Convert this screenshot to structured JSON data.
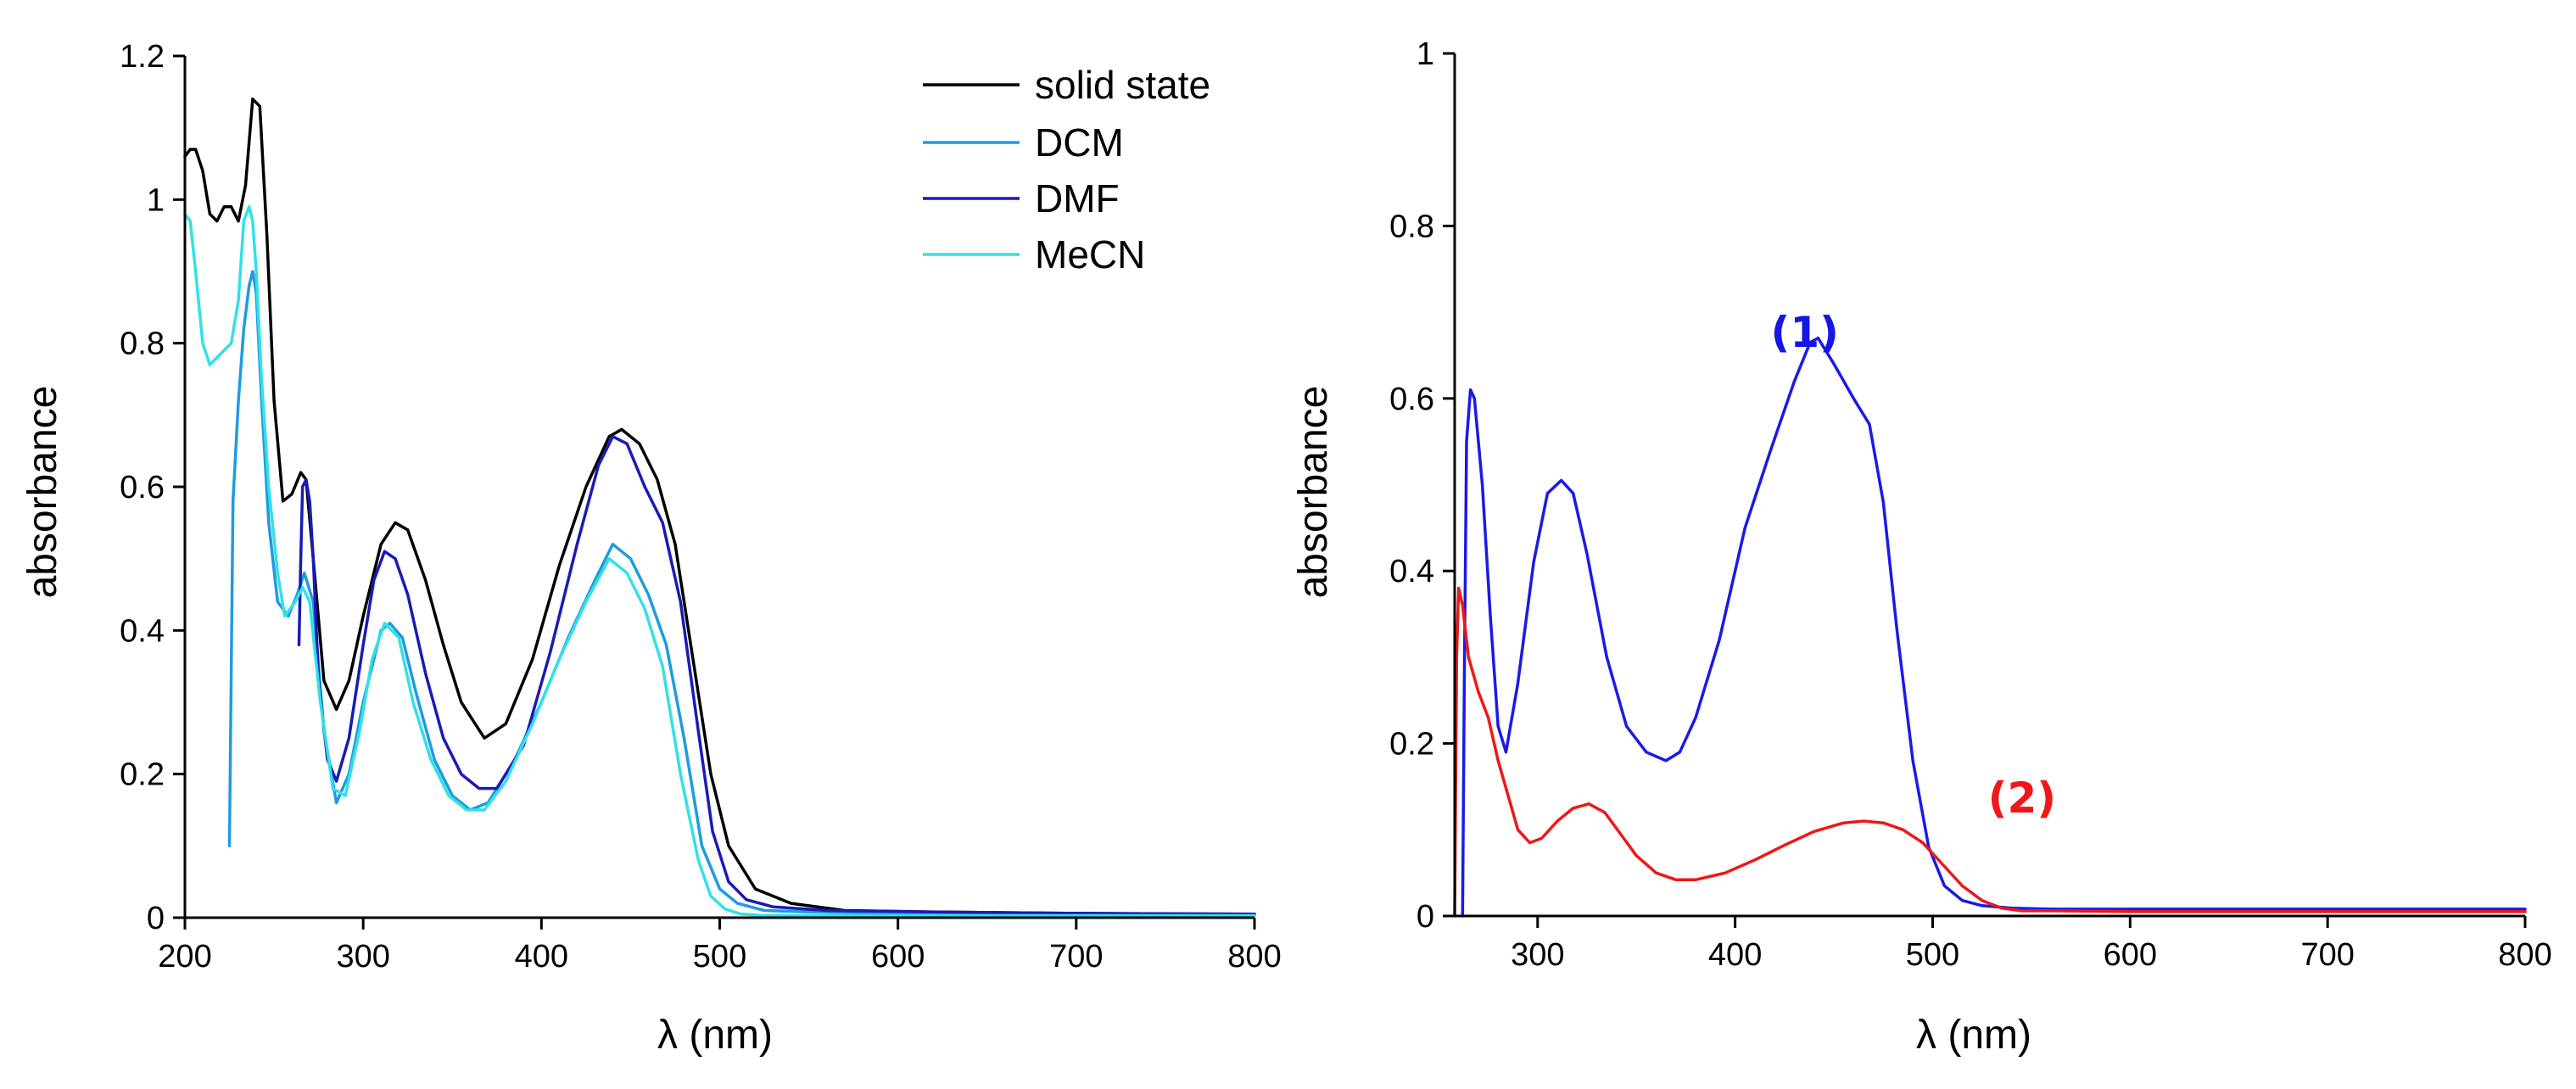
{
  "chart_data": [
    {
      "type": "line",
      "title": "",
      "xlabel": "λ (nm)",
      "ylabel": "absorbance",
      "xlim": [
        200,
        800
      ],
      "ylim": [
        0,
        1.2
      ],
      "xticks": [
        200,
        300,
        400,
        500,
        600,
        700,
        800
      ],
      "yticks": [
        0,
        0.2,
        0.4,
        0.6,
        0.8,
        1,
        1.2
      ],
      "ytick_labels": [
        "0",
        "0.2",
        "0.4",
        "0.6",
        "0.8",
        "1",
        "1.2"
      ],
      "legend": {
        "placement": "top-right",
        "entries": [
          {
            "name": "solid state",
            "color": "#000000"
          },
          {
            "name": "DCM",
            "color": "#1e9be0"
          },
          {
            "name": "DMF",
            "color": "#1a1ab8"
          },
          {
            "name": "MeCN",
            "color": "#33e0e6"
          }
        ]
      },
      "series": [
        {
          "name": "solid state",
          "color": "#000000",
          "x": [
            200,
            203,
            206,
            210,
            214,
            218,
            222,
            226,
            230,
            234,
            238,
            242,
            246,
            250,
            255,
            260,
            265,
            268,
            272,
            278,
            285,
            292,
            300,
            310,
            318,
            325,
            335,
            345,
            355,
            368,
            380,
            395,
            410,
            425,
            438,
            445,
            455,
            465,
            475,
            485,
            495,
            505,
            520,
            540,
            570,
            620,
            700,
            800
          ],
          "y": [
            1.06,
            1.07,
            1.07,
            1.04,
            0.98,
            0.97,
            0.99,
            0.99,
            0.97,
            1.02,
            1.14,
            1.13,
            0.95,
            0.72,
            0.58,
            0.59,
            0.62,
            0.61,
            0.5,
            0.33,
            0.29,
            0.33,
            0.42,
            0.52,
            0.55,
            0.54,
            0.47,
            0.38,
            0.3,
            0.25,
            0.27,
            0.36,
            0.49,
            0.6,
            0.67,
            0.68,
            0.66,
            0.61,
            0.52,
            0.36,
            0.2,
            0.1,
            0.04,
            0.02,
            0.01,
            0.008,
            0.006,
            0.005
          ]
        },
        {
          "name": "DCM",
          "color": "#1e9be0",
          "x": [
            225,
            227,
            230,
            233,
            236,
            238,
            240,
            243,
            247,
            252,
            258,
            263,
            267,
            272,
            278,
            285,
            292,
            300,
            310,
            315,
            322,
            330,
            340,
            350,
            360,
            370,
            385,
            400,
            415,
            430,
            440,
            450,
            460,
            470,
            480,
            490,
            500,
            510,
            525,
            550,
            600,
            700,
            800
          ],
          "y": [
            0.1,
            0.58,
            0.72,
            0.82,
            0.88,
            0.9,
            0.87,
            0.72,
            0.55,
            0.44,
            0.42,
            0.45,
            0.48,
            0.44,
            0.26,
            0.16,
            0.2,
            0.3,
            0.4,
            0.41,
            0.39,
            0.31,
            0.22,
            0.17,
            0.15,
            0.16,
            0.22,
            0.3,
            0.39,
            0.47,
            0.52,
            0.5,
            0.45,
            0.38,
            0.25,
            0.1,
            0.04,
            0.02,
            0.01,
            0.008,
            0.006,
            0.005,
            0.005
          ]
        },
        {
          "name": "DMF",
          "color": "#1a1ab8",
          "x": [
            264,
            265,
            266,
            268,
            270,
            272,
            275,
            280,
            285,
            292,
            300,
            306,
            312,
            318,
            325,
            335,
            345,
            355,
            365,
            375,
            390,
            405,
            420,
            432,
            440,
            448,
            458,
            468,
            478,
            488,
            496,
            505,
            515,
            530,
            560,
            620,
            700,
            800
          ],
          "y": [
            0.38,
            0.5,
            0.6,
            0.61,
            0.58,
            0.5,
            0.33,
            0.22,
            0.19,
            0.25,
            0.38,
            0.47,
            0.51,
            0.5,
            0.45,
            0.34,
            0.25,
            0.2,
            0.18,
            0.18,
            0.24,
            0.37,
            0.52,
            0.63,
            0.67,
            0.66,
            0.6,
            0.55,
            0.44,
            0.26,
            0.12,
            0.05,
            0.025,
            0.015,
            0.01,
            0.008,
            0.006,
            0.005
          ]
        },
        {
          "name": "MeCN",
          "color": "#33e0e6",
          "x": [
            200,
            203,
            206,
            210,
            214,
            218,
            222,
            226,
            230,
            233,
            236,
            238,
            240,
            243,
            247,
            252,
            256,
            262,
            266,
            270,
            276,
            283,
            290,
            298,
            305,
            312,
            320,
            328,
            338,
            348,
            358,
            368,
            380,
            395,
            410,
            425,
            438,
            448,
            458,
            468,
            478,
            488,
            495,
            503,
            512,
            525,
            550,
            600,
            700,
            800
          ],
          "y": [
            0.98,
            0.97,
            0.9,
            0.8,
            0.77,
            0.78,
            0.79,
            0.8,
            0.86,
            0.97,
            0.99,
            0.97,
            0.9,
            0.75,
            0.6,
            0.48,
            0.42,
            0.44,
            0.46,
            0.44,
            0.3,
            0.18,
            0.17,
            0.26,
            0.36,
            0.41,
            0.39,
            0.3,
            0.22,
            0.17,
            0.15,
            0.15,
            0.19,
            0.27,
            0.36,
            0.44,
            0.5,
            0.48,
            0.43,
            0.35,
            0.2,
            0.08,
            0.03,
            0.012,
            0.005,
            0.003,
            0.003,
            0.003,
            0.003,
            0.003
          ]
        }
      ]
    },
    {
      "type": "line",
      "title": "",
      "xlabel": "λ (nm)",
      "ylabel": "absorbance",
      "xlim": [
        258,
        800
      ],
      "ylim": [
        0,
        1
      ],
      "xticks": [
        300,
        400,
        500,
        600,
        700,
        800
      ],
      "yticks": [
        0,
        0.2,
        0.4,
        0.6,
        0.8,
        1
      ],
      "ytick_labels": [
        "0",
        "0.2",
        "0.4",
        "0.6",
        "0.8",
        "1"
      ],
      "annotations": [
        {
          "text": "(1)",
          "color": "#1616e6",
          "x": 418,
          "y": 0.66
        },
        {
          "text": "(2)",
          "color": "#ef1717",
          "x": 528,
          "y": 0.12
        }
      ],
      "series": [
        {
          "name": "(1)",
          "color": "#1a1ae6",
          "x": [
            262,
            263,
            264,
            266,
            268,
            272,
            276,
            280,
            284,
            290,
            298,
            305,
            312,
            318,
            325,
            335,
            345,
            355,
            365,
            372,
            380,
            392,
            405,
            418,
            430,
            438,
            442,
            450,
            460,
            468,
            475,
            482,
            490,
            498,
            506,
            515,
            525,
            540,
            560,
            600,
            700,
            800
          ],
          "y": [
            0.0,
            0.3,
            0.55,
            0.61,
            0.6,
            0.5,
            0.35,
            0.22,
            0.19,
            0.27,
            0.41,
            0.49,
            0.505,
            0.49,
            0.42,
            0.3,
            0.22,
            0.19,
            0.18,
            0.19,
            0.23,
            0.32,
            0.45,
            0.54,
            0.62,
            0.665,
            0.67,
            0.64,
            0.6,
            0.57,
            0.48,
            0.33,
            0.18,
            0.08,
            0.035,
            0.018,
            0.012,
            0.009,
            0.008,
            0.008,
            0.008,
            0.008
          ]
        },
        {
          "name": "(2)",
          "color": "#ef1717",
          "x": [
            258,
            259,
            260,
            262,
            265,
            270,
            275,
            280,
            285,
            290,
            296,
            302,
            310,
            318,
            326,
            334,
            342,
            350,
            360,
            370,
            380,
            395,
            410,
            425,
            440,
            455,
            465,
            475,
            485,
            495,
            505,
            515,
            525,
            535,
            545,
            560,
            600,
            700,
            800
          ],
          "y": [
            0.0,
            0.3,
            0.38,
            0.36,
            0.3,
            0.26,
            0.23,
            0.18,
            0.14,
            0.1,
            0.085,
            0.09,
            0.11,
            0.125,
            0.13,
            0.12,
            0.095,
            0.07,
            0.05,
            0.042,
            0.042,
            0.05,
            0.065,
            0.082,
            0.098,
            0.108,
            0.11,
            0.108,
            0.1,
            0.085,
            0.06,
            0.035,
            0.018,
            0.009,
            0.006,
            0.006,
            0.005,
            0.005,
            0.005
          ]
        }
      ]
    }
  ]
}
